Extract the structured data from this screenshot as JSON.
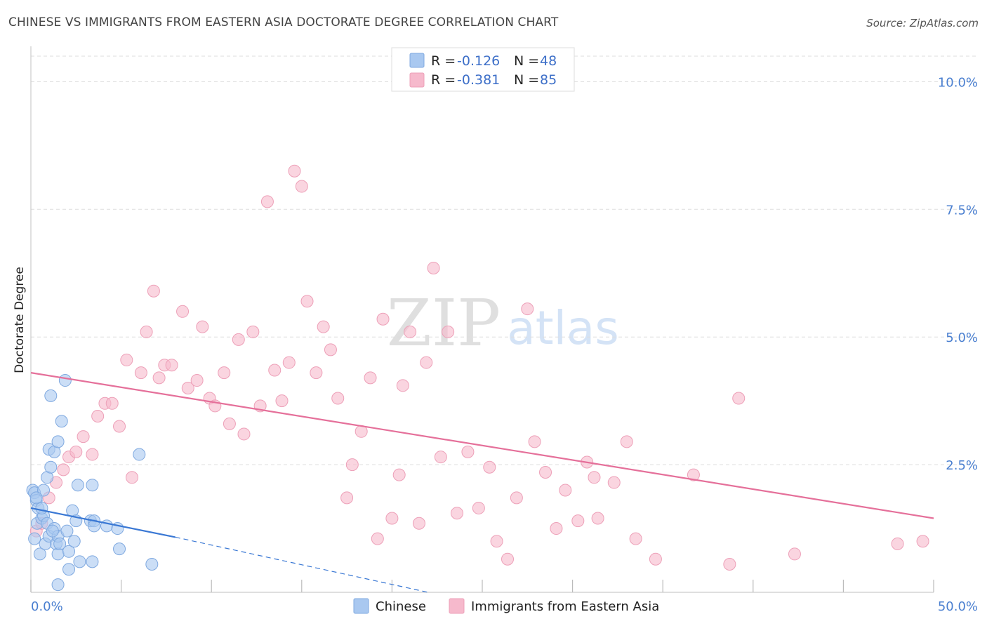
{
  "header": {
    "title": "CHINESE VS IMMIGRANTS FROM EASTERN ASIA DOCTORATE DEGREE CORRELATION CHART",
    "source": "Source: ZipAtlas.com"
  },
  "watermark": {
    "zip": "ZIP",
    "atlas": "atlas"
  },
  "legend": {
    "rows": [
      {
        "r_label": "R =",
        "r_value": "-0.126",
        "n_label": "N =",
        "n_value": "48",
        "color": "#a9c8f0"
      },
      {
        "r_label": "R =",
        "r_value": "-0.381",
        "n_label": "N =",
        "n_value": "85",
        "color": "#f6b9cc"
      }
    ]
  },
  "bottom_legend": {
    "items": [
      {
        "label": "Chinese",
        "color": "#a9c8f0"
      },
      {
        "label": "Immigrants from Eastern Asia",
        "color": "#f6b9cc"
      }
    ]
  },
  "chart_data": {
    "type": "scatter",
    "title": "CHINESE VS IMMIGRANTS FROM EASTERN ASIA DOCTORATE DEGREE CORRELATION CHART",
    "xlabel": "",
    "ylabel": "Doctorate Degree",
    "xlim": [
      0,
      50
    ],
    "ylim": [
      0,
      10.5
    ],
    "x_tick_labels": [
      {
        "value": 0,
        "label": "0.0%"
      },
      {
        "value": 50,
        "label": "50.0%"
      }
    ],
    "y_tick_labels": [
      {
        "value": 2.5,
        "label": "2.5%"
      },
      {
        "value": 5.0,
        "label": "5.0%"
      },
      {
        "value": 7.5,
        "label": "7.5%"
      },
      {
        "value": 10.0,
        "label": "10.0%"
      }
    ],
    "x_minor_ticks": [
      0,
      5,
      10,
      15,
      20,
      25,
      30,
      35,
      40,
      45,
      50
    ],
    "grid": true,
    "series": [
      {
        "name": "Chinese",
        "color": "#7fb0ea",
        "trend": {
          "x": [
            0,
            8
          ],
          "y": [
            1.65,
            1.08
          ],
          "dashed_to": [
            22,
            0.0
          ]
        },
        "points": [
          [
            0.1,
            2.0
          ],
          [
            0.2,
            1.95
          ],
          [
            0.3,
            1.8
          ],
          [
            0.4,
            1.65
          ],
          [
            0.35,
            1.35
          ],
          [
            0.5,
            0.75
          ],
          [
            0.6,
            1.45
          ],
          [
            0.7,
            1.5
          ],
          [
            0.8,
            0.95
          ],
          [
            0.9,
            1.35
          ],
          [
            0.7,
            2.0
          ],
          [
            1.0,
            1.1
          ],
          [
            0.9,
            2.25
          ],
          [
            1.0,
            2.8
          ],
          [
            1.1,
            2.45
          ],
          [
            1.1,
            3.85
          ],
          [
            1.3,
            2.75
          ],
          [
            1.3,
            1.25
          ],
          [
            1.4,
            0.95
          ],
          [
            1.5,
            2.95
          ],
          [
            1.5,
            0.75
          ],
          [
            1.5,
            1.1
          ],
          [
            1.6,
            0.95
          ],
          [
            1.7,
            3.35
          ],
          [
            1.5,
            0.15
          ],
          [
            1.9,
            4.15
          ],
          [
            2.0,
            1.2
          ],
          [
            2.1,
            0.45
          ],
          [
            2.1,
            0.8
          ],
          [
            2.3,
            1.6
          ],
          [
            2.4,
            1.0
          ],
          [
            2.5,
            1.4
          ],
          [
            2.7,
            0.6
          ],
          [
            2.6,
            2.1
          ],
          [
            3.3,
            1.4
          ],
          [
            3.5,
            1.4
          ],
          [
            3.4,
            0.6
          ],
          [
            3.4,
            2.1
          ],
          [
            3.5,
            1.3
          ],
          [
            4.2,
            1.3
          ],
          [
            4.8,
            1.25
          ],
          [
            4.9,
            0.85
          ],
          [
            6.0,
            2.7
          ],
          [
            6.7,
            0.55
          ],
          [
            0.2,
            1.05
          ],
          [
            0.6,
            1.65
          ],
          [
            1.2,
            1.2
          ],
          [
            0.3,
            1.85
          ]
        ]
      },
      {
        "name": "Immigrants from Eastern Asia",
        "color": "#f2a6bf",
        "trend": {
          "x": [
            0,
            50
          ],
          "y": [
            4.3,
            1.45
          ]
        },
        "points": [
          [
            0.3,
            1.2
          ],
          [
            0.6,
            1.35
          ],
          [
            1.0,
            1.85
          ],
          [
            1.4,
            2.15
          ],
          [
            1.8,
            2.4
          ],
          [
            2.1,
            2.65
          ],
          [
            2.5,
            2.75
          ],
          [
            2.9,
            3.05
          ],
          [
            3.4,
            2.7
          ],
          [
            3.7,
            3.45
          ],
          [
            4.1,
            3.7
          ],
          [
            4.5,
            3.7
          ],
          [
            4.9,
            3.25
          ],
          [
            5.3,
            4.55
          ],
          [
            5.6,
            2.25
          ],
          [
            6.1,
            4.3
          ],
          [
            6.4,
            5.1
          ],
          [
            6.8,
            5.9
          ],
          [
            7.1,
            4.2
          ],
          [
            7.4,
            4.45
          ],
          [
            7.8,
            4.45
          ],
          [
            8.4,
            5.5
          ],
          [
            8.7,
            4.0
          ],
          [
            9.2,
            4.15
          ],
          [
            9.5,
            5.2
          ],
          [
            9.9,
            3.8
          ],
          [
            10.2,
            3.65
          ],
          [
            10.7,
            4.3
          ],
          [
            11.0,
            3.3
          ],
          [
            11.5,
            4.95
          ],
          [
            11.8,
            3.1
          ],
          [
            12.3,
            5.1
          ],
          [
            12.7,
            3.65
          ],
          [
            13.1,
            7.65
          ],
          [
            13.5,
            4.35
          ],
          [
            13.9,
            3.75
          ],
          [
            14.3,
            4.5
          ],
          [
            14.6,
            8.25
          ],
          [
            15.0,
            7.95
          ],
          [
            15.3,
            5.7
          ],
          [
            15.8,
            4.3
          ],
          [
            16.2,
            5.2
          ],
          [
            16.6,
            4.75
          ],
          [
            17.0,
            3.8
          ],
          [
            17.5,
            1.85
          ],
          [
            17.8,
            2.5
          ],
          [
            18.3,
            3.15
          ],
          [
            18.8,
            4.2
          ],
          [
            19.2,
            1.05
          ],
          [
            19.5,
            5.35
          ],
          [
            20.0,
            1.45
          ],
          [
            20.4,
            2.3
          ],
          [
            20.6,
            4.05
          ],
          [
            21.0,
            5.1
          ],
          [
            21.5,
            1.35
          ],
          [
            21.9,
            4.5
          ],
          [
            22.3,
            6.35
          ],
          [
            22.7,
            2.65
          ],
          [
            23.1,
            5.1
          ],
          [
            23.6,
            1.55
          ],
          [
            24.2,
            2.75
          ],
          [
            24.8,
            1.65
          ],
          [
            25.4,
            2.45
          ],
          [
            25.8,
            1.0
          ],
          [
            26.4,
            0.65
          ],
          [
            26.9,
            1.85
          ],
          [
            27.5,
            5.55
          ],
          [
            27.9,
            2.95
          ],
          [
            28.5,
            2.35
          ],
          [
            29.1,
            1.25
          ],
          [
            29.6,
            2.0
          ],
          [
            30.3,
            1.4
          ],
          [
            30.8,
            2.55
          ],
          [
            31.2,
            2.25
          ],
          [
            31.4,
            1.45
          ],
          [
            32.3,
            2.15
          ],
          [
            33.0,
            2.95
          ],
          [
            33.5,
            1.05
          ],
          [
            34.6,
            0.65
          ],
          [
            36.7,
            2.3
          ],
          [
            38.7,
            0.55
          ],
          [
            39.2,
            3.8
          ],
          [
            42.3,
            0.75
          ],
          [
            48.0,
            0.95
          ],
          [
            49.4,
            1.0
          ]
        ]
      }
    ]
  }
}
